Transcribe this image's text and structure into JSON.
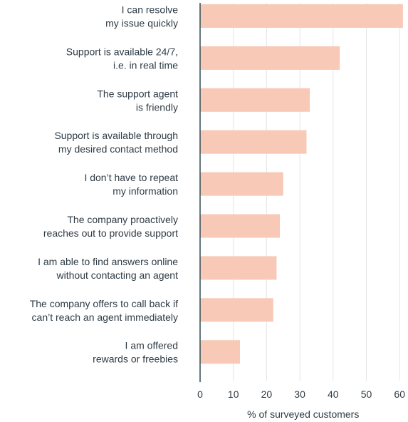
{
  "chart_data": {
    "type": "bar",
    "orientation": "horizontal",
    "categories": [
      [
        "I can resolve",
        "my issue quickly"
      ],
      [
        "Support is available 24/7,",
        "i.e. in real time"
      ],
      [
        "The support agent",
        "is friendly"
      ],
      [
        "Support is available through",
        "my desired contact method"
      ],
      [
        "I don’t have to repeat",
        "my information"
      ],
      [
        "The company proactively",
        "reaches out to provide support"
      ],
      [
        "I am able to find answers online",
        "without contacting an agent"
      ],
      [
        "The company offers to call back if",
        "can’t reach an agent immediately"
      ],
      [
        "I am offered",
        "rewards or freebies"
      ]
    ],
    "values": [
      61,
      42,
      33,
      32,
      25,
      24,
      23,
      22,
      12
    ],
    "xlim": [
      0,
      62
    ],
    "xticks": [
      "0",
      "10",
      "20",
      "30",
      "40",
      "50",
      "60"
    ],
    "xlabel": "% of surveyed customers",
    "ylabel": "",
    "title": "",
    "grid": "vertical",
    "legend": "none",
    "bar_color": "#f7c9b6",
    "grid_color": "#e4e6e8",
    "axis_color": "#2e4a54",
    "text_color": "#2e3b45"
  }
}
